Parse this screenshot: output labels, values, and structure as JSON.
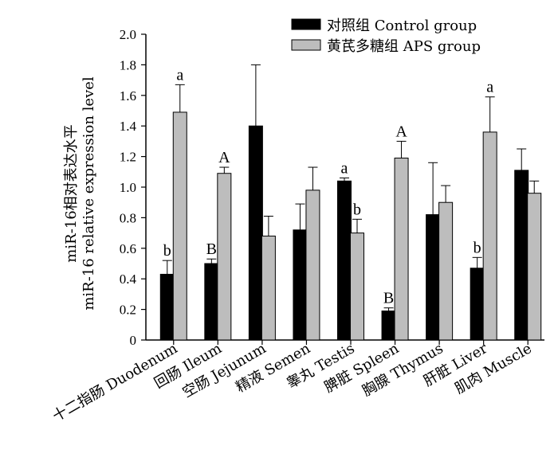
{
  "chart_data": {
    "type": "bar",
    "categories": [
      "十二指肠 Duodenum",
      "回肠 Ileum",
      "空肠 Jejunum",
      "精液 Semen",
      "睾丸 Testis",
      "脾脏 Spleen",
      "胸腺 Thymus",
      "肝脏 Liver",
      "肌肉 Muscle"
    ],
    "series": [
      {
        "name": "对照组 Control group",
        "color": "#000000",
        "values": [
          0.43,
          0.5,
          1.4,
          0.72,
          1.04,
          0.19,
          0.82,
          0.47,
          1.11
        ],
        "errors": [
          0.09,
          0.03,
          0.4,
          0.17,
          0.02,
          0.02,
          0.34,
          0.07,
          0.14
        ],
        "annotations": [
          "b",
          "B",
          "",
          "",
          "a",
          "B",
          "",
          "b",
          ""
        ]
      },
      {
        "name": "黄芪多糖组 APS group",
        "color": "#bdbdbd",
        "values": [
          1.49,
          1.09,
          0.68,
          0.98,
          0.7,
          1.19,
          0.9,
          1.36,
          0.96
        ],
        "errors": [
          0.18,
          0.04,
          0.13,
          0.15,
          0.09,
          0.11,
          0.11,
          0.23,
          0.08
        ],
        "annotations": [
          "a",
          "A",
          "",
          "",
          "b",
          "A",
          "",
          "a",
          ""
        ]
      }
    ],
    "ylabel_line1": "miR-16相对表达水平",
    "ylabel_line2": "miR-16 relative expression level",
    "ylim": [
      0,
      2.0
    ],
    "yticks": [
      "0",
      "0.2",
      "0.4",
      "0.6",
      "0.8",
      "1.0",
      "1.2",
      "1.4",
      "1.6",
      "1.8",
      "2.0"
    ],
    "grid": false,
    "legend_position": "top-right"
  }
}
